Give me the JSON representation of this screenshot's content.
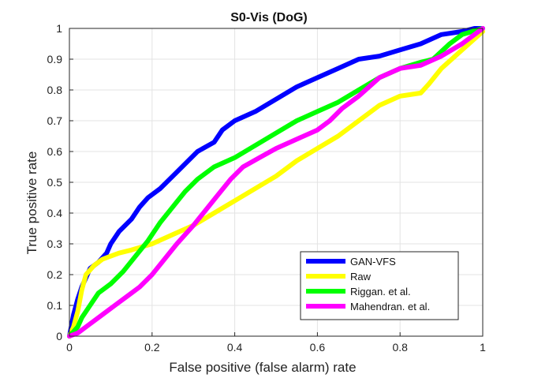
{
  "chart_data": {
    "type": "line",
    "title": "S0-Vis (DoG)",
    "xlabel": "False positive (false alarm) rate",
    "ylabel": "True positive  rate",
    "xlim": [
      0,
      1
    ],
    "ylim": [
      0,
      1
    ],
    "x_ticks": [
      "0",
      "0.2",
      "0.4",
      "0.6",
      "0.8",
      "1"
    ],
    "y_ticks": [
      "0",
      "0.1",
      "0.2",
      "0.3",
      "0.4",
      "0.5",
      "0.6",
      "0.7",
      "0.8",
      "0.9",
      "1"
    ],
    "grid": true,
    "legend_position": "bottom-right",
    "series": [
      {
        "name": "GAN-VFS",
        "color": "#0000ff",
        "points": [
          [
            0,
            0
          ],
          [
            0.01,
            0.07
          ],
          [
            0.02,
            0.12
          ],
          [
            0.03,
            0.16
          ],
          [
            0.04,
            0.19
          ],
          [
            0.05,
            0.22
          ],
          [
            0.07,
            0.24
          ],
          [
            0.09,
            0.27
          ],
          [
            0.1,
            0.3
          ],
          [
            0.12,
            0.34
          ],
          [
            0.15,
            0.38
          ],
          [
            0.17,
            0.42
          ],
          [
            0.19,
            0.45
          ],
          [
            0.22,
            0.48
          ],
          [
            0.25,
            0.52
          ],
          [
            0.28,
            0.56
          ],
          [
            0.31,
            0.6
          ],
          [
            0.35,
            0.63
          ],
          [
            0.37,
            0.67
          ],
          [
            0.4,
            0.7
          ],
          [
            0.45,
            0.73
          ],
          [
            0.5,
            0.77
          ],
          [
            0.55,
            0.81
          ],
          [
            0.6,
            0.84
          ],
          [
            0.65,
            0.87
          ],
          [
            0.7,
            0.9
          ],
          [
            0.75,
            0.91
          ],
          [
            0.8,
            0.93
          ],
          [
            0.85,
            0.95
          ],
          [
            0.9,
            0.98
          ],
          [
            0.95,
            0.99
          ],
          [
            0.98,
            1.0
          ],
          [
            1.0,
            1.0
          ]
        ]
      },
      {
        "name": "Raw",
        "color": "#ffff00",
        "points": [
          [
            0,
            0
          ],
          [
            0.01,
            0.03
          ],
          [
            0.02,
            0.08
          ],
          [
            0.03,
            0.15
          ],
          [
            0.04,
            0.2
          ],
          [
            0.06,
            0.23
          ],
          [
            0.08,
            0.25
          ],
          [
            0.1,
            0.26
          ],
          [
            0.12,
            0.27
          ],
          [
            0.15,
            0.28
          ],
          [
            0.2,
            0.3
          ],
          [
            0.25,
            0.33
          ],
          [
            0.3,
            0.36
          ],
          [
            0.35,
            0.4
          ],
          [
            0.4,
            0.44
          ],
          [
            0.45,
            0.48
          ],
          [
            0.5,
            0.52
          ],
          [
            0.55,
            0.57
          ],
          [
            0.6,
            0.61
          ],
          [
            0.65,
            0.65
          ],
          [
            0.7,
            0.7
          ],
          [
            0.75,
            0.75
          ],
          [
            0.8,
            0.78
          ],
          [
            0.85,
            0.79
          ],
          [
            0.87,
            0.82
          ],
          [
            0.9,
            0.87
          ],
          [
            0.95,
            0.93
          ],
          [
            1.0,
            0.99
          ]
        ]
      },
      {
        "name": "Riggan. et al.",
        "color": "#00ff00",
        "points": [
          [
            0,
            0
          ],
          [
            0.02,
            0.03
          ],
          [
            0.03,
            0.06
          ],
          [
            0.05,
            0.1
          ],
          [
            0.07,
            0.14
          ],
          [
            0.1,
            0.17
          ],
          [
            0.13,
            0.21
          ],
          [
            0.16,
            0.26
          ],
          [
            0.19,
            0.31
          ],
          [
            0.22,
            0.37
          ],
          [
            0.25,
            0.42
          ],
          [
            0.28,
            0.47
          ],
          [
            0.31,
            0.51
          ],
          [
            0.35,
            0.55
          ],
          [
            0.4,
            0.58
          ],
          [
            0.45,
            0.62
          ],
          [
            0.5,
            0.66
          ],
          [
            0.55,
            0.7
          ],
          [
            0.6,
            0.73
          ],
          [
            0.65,
            0.76
          ],
          [
            0.7,
            0.8
          ],
          [
            0.75,
            0.84
          ],
          [
            0.8,
            0.87
          ],
          [
            0.85,
            0.89
          ],
          [
            0.88,
            0.9
          ],
          [
            0.92,
            0.95
          ],
          [
            0.95,
            0.98
          ],
          [
            1.0,
            1.0
          ]
        ]
      },
      {
        "name": "Mahendran. et al.",
        "color": "#ff00ff",
        "points": [
          [
            0,
            0
          ],
          [
            0.02,
            0.01
          ],
          [
            0.05,
            0.04
          ],
          [
            0.08,
            0.07
          ],
          [
            0.11,
            0.1
          ],
          [
            0.14,
            0.13
          ],
          [
            0.17,
            0.16
          ],
          [
            0.2,
            0.2
          ],
          [
            0.23,
            0.25
          ],
          [
            0.26,
            0.3
          ],
          [
            0.3,
            0.36
          ],
          [
            0.33,
            0.41
          ],
          [
            0.36,
            0.46
          ],
          [
            0.39,
            0.51
          ],
          [
            0.42,
            0.55
          ],
          [
            0.46,
            0.58
          ],
          [
            0.5,
            0.61
          ],
          [
            0.55,
            0.64
          ],
          [
            0.6,
            0.67
          ],
          [
            0.63,
            0.7
          ],
          [
            0.66,
            0.74
          ],
          [
            0.7,
            0.78
          ],
          [
            0.75,
            0.84
          ],
          [
            0.8,
            0.87
          ],
          [
            0.85,
            0.88
          ],
          [
            0.9,
            0.91
          ],
          [
            0.95,
            0.95
          ],
          [
            1.0,
            1.0
          ]
        ]
      }
    ]
  }
}
